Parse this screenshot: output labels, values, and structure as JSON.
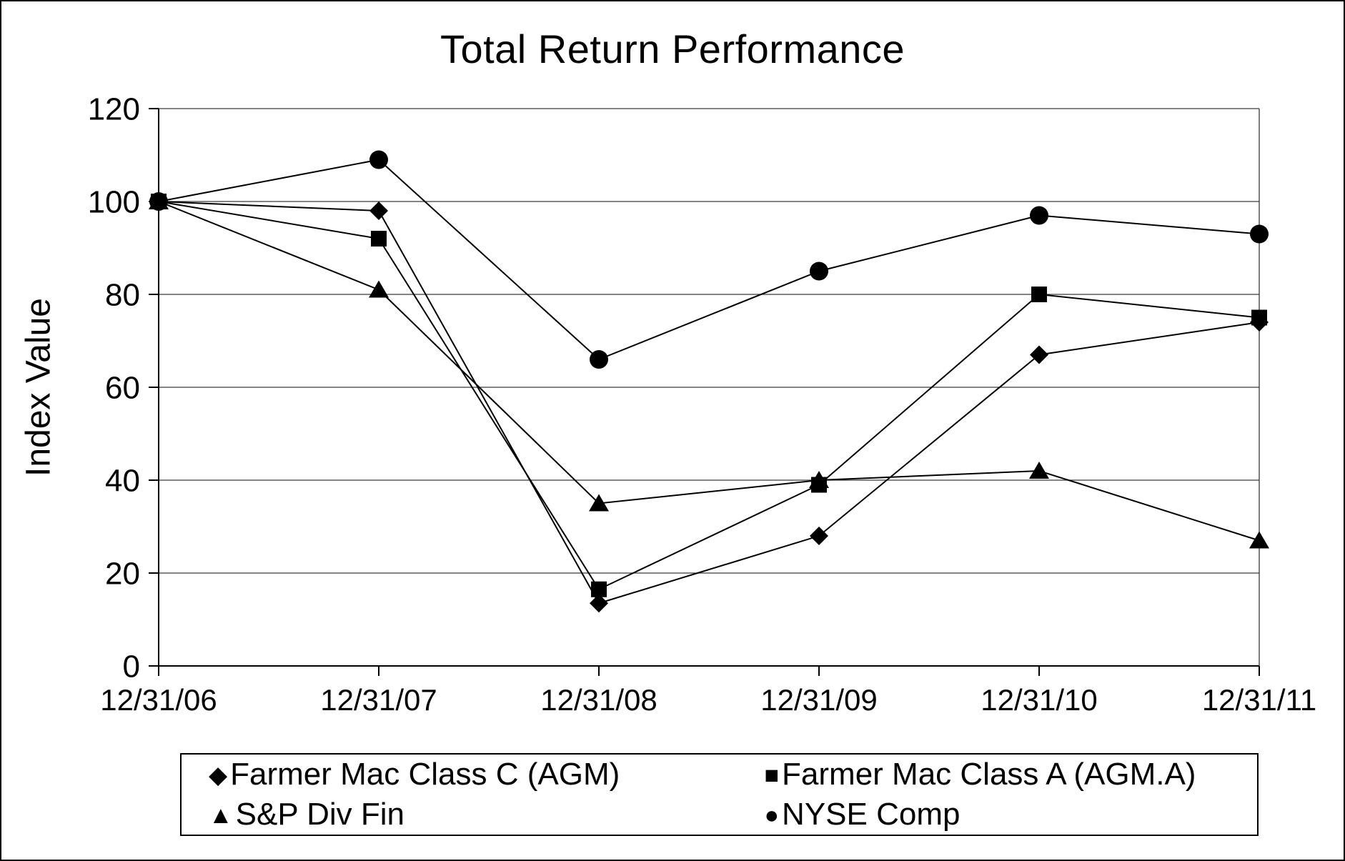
{
  "title": "Total Return Performance",
  "ylabel": "Index Value",
  "chart_data": {
    "type": "line",
    "title": "Total Return Performance",
    "xlabel": "",
    "ylabel": "Index Value",
    "categories": [
      "12/31/06",
      "12/31/07",
      "12/31/08",
      "12/31/09",
      "12/31/10",
      "12/31/11"
    ],
    "series": [
      {
        "name": "Farmer Mac Class C (AGM)",
        "marker": "diamond",
        "values": [
          100,
          98,
          13.5,
          28,
          67,
          74
        ]
      },
      {
        "name": "Farmer Mac Class A (AGM.A)",
        "marker": "square",
        "values": [
          100,
          92,
          16.5,
          39,
          80,
          75
        ]
      },
      {
        "name": "S&P Div Fin",
        "marker": "triangle",
        "values": [
          100,
          81,
          35,
          40,
          42,
          27
        ]
      },
      {
        "name": "NYSE Comp",
        "marker": "circle",
        "values": [
          100,
          109,
          66,
          85,
          97,
          93
        ]
      }
    ],
    "ylim": [
      0,
      120
    ],
    "yticks": [
      0,
      20,
      40,
      60,
      80,
      100,
      120
    ],
    "grid": true,
    "legend_position": "bottom",
    "colors": {
      "line": "#000000",
      "background": "#ffffff"
    }
  },
  "legend": {
    "marker_glyphs": {
      "diamond": "◆",
      "square": "■",
      "triangle": "▲",
      "circle": "●"
    }
  }
}
